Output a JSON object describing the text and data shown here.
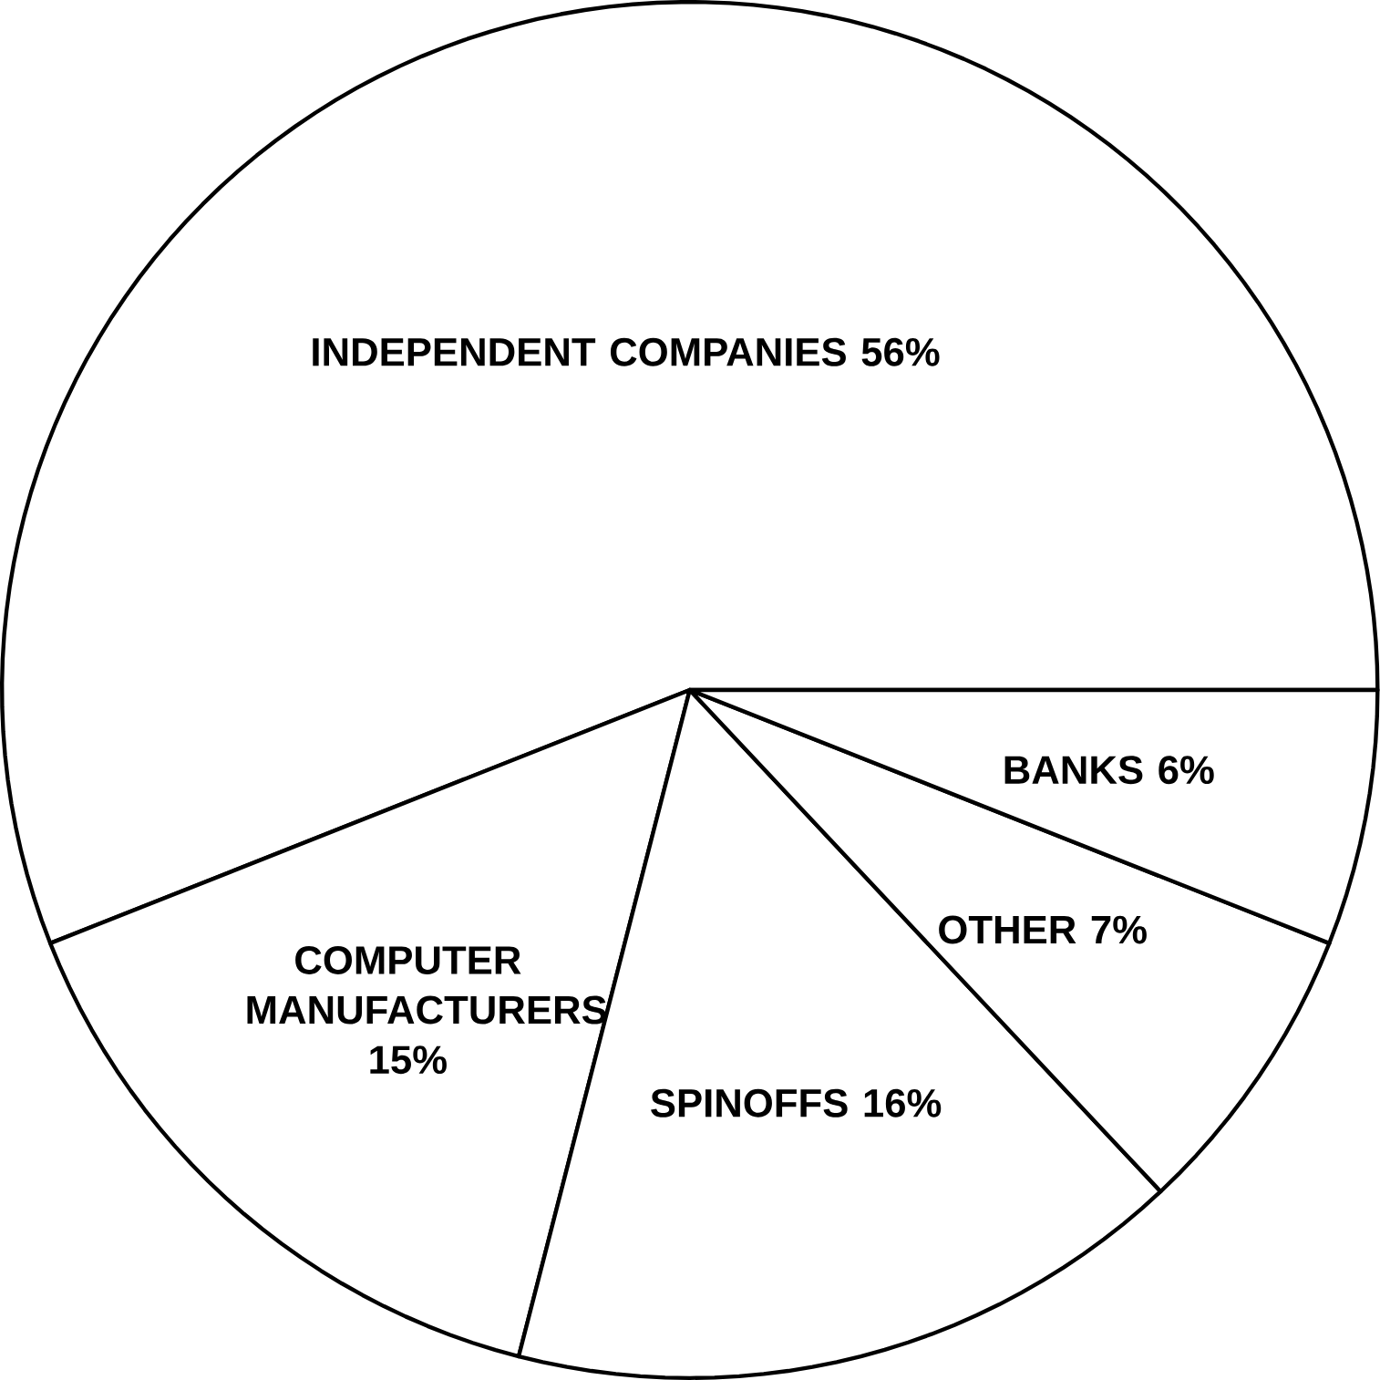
{
  "chart_data": {
    "type": "pie",
    "categories": [
      "INDEPENDENT COMPANIES",
      "COMPUTER MANUFACTURERS",
      "SPINOFFS",
      "OTHER",
      "BANKS"
    ],
    "values": [
      56,
      15,
      16,
      7,
      6
    ],
    "value_labels": [
      "56%",
      "15%",
      "16%",
      "7%",
      "6%"
    ],
    "colors": [
      "#ffffff",
      "#ffffff",
      "#ffffff",
      "#ffffff",
      "#ffffff"
    ]
  }
}
